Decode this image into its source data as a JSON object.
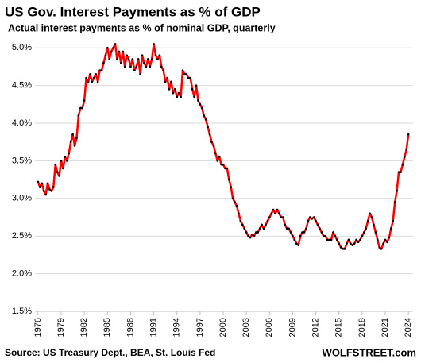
{
  "chart_data": {
    "type": "line",
    "title": "US Gov. Interest Payments as % of GDP",
    "subtitle": "Actual interest payments as % of nominal GDP, quarterly",
    "source": "Source: US Treasury Dept., BEA, St. Louis Fed",
    "credit": "WOLFSTREET.com",
    "color": "#ff0000",
    "marker_color": "#000000",
    "grid": true,
    "xlim": [
      1975.6,
      2024.6
    ],
    "xticks": [
      1976,
      1979,
      1982,
      1985,
      1988,
      1991,
      1994,
      1997,
      2000,
      2003,
      2006,
      2009,
      2012,
      2015,
      2018,
      2021,
      2024
    ],
    "ylim": [
      1.5,
      5.15
    ],
    "yticks": [
      {
        "value": 1.5,
        "label": "1.5%"
      },
      {
        "value": 2.0,
        "label": "2.0%"
      },
      {
        "value": 2.5,
        "label": "2.5%"
      },
      {
        "value": 3.0,
        "label": "3.0%"
      },
      {
        "value": 3.5,
        "label": "3.5%"
      },
      {
        "value": 4.0,
        "label": "4.0%"
      },
      {
        "value": 4.5,
        "label": "4.5%"
      },
      {
        "value": 5.0,
        "label": "5.0%"
      }
    ],
    "x": [
      1976,
      1976.25,
      1976.5,
      1976.75,
      1977,
      1977.25,
      1977.5,
      1977.75,
      1978,
      1978.25,
      1978.5,
      1978.75,
      1979,
      1979.25,
      1979.5,
      1979.75,
      1980,
      1980.25,
      1980.5,
      1980.75,
      1981,
      1981.25,
      1981.5,
      1981.75,
      1982,
      1982.25,
      1982.5,
      1982.75,
      1983,
      1983.25,
      1983.5,
      1983.75,
      1984,
      1984.25,
      1984.5,
      1984.75,
      1985,
      1985.25,
      1985.5,
      1985.75,
      1986,
      1986.25,
      1986.5,
      1986.75,
      1987,
      1987.25,
      1987.5,
      1987.75,
      1988,
      1988.25,
      1988.5,
      1988.75,
      1989,
      1989.25,
      1989.5,
      1989.75,
      1990,
      1990.25,
      1990.5,
      1990.75,
      1991,
      1991.25,
      1991.5,
      1991.75,
      1992,
      1992.25,
      1992.5,
      1992.75,
      1993,
      1993.25,
      1993.5,
      1993.75,
      1994,
      1994.25,
      1994.5,
      1994.75,
      1995,
      1995.25,
      1995.5,
      1995.75,
      1996,
      1996.25,
      1996.5,
      1996.75,
      1997,
      1997.25,
      1997.5,
      1997.75,
      1998,
      1998.25,
      1998.5,
      1998.75,
      1999,
      1999.25,
      1999.5,
      1999.75,
      2000,
      2000.25,
      2000.5,
      2000.75,
      2001,
      2001.25,
      2001.5,
      2001.75,
      2002,
      2002.25,
      2002.5,
      2002.75,
      2003,
      2003.25,
      2003.5,
      2003.75,
      2004,
      2004.25,
      2004.5,
      2004.75,
      2005,
      2005.25,
      2005.5,
      2005.75,
      2006,
      2006.25,
      2006.5,
      2006.75,
      2007,
      2007.25,
      2007.5,
      2007.75,
      2008,
      2008.25,
      2008.5,
      2008.75,
      2009,
      2009.25,
      2009.5,
      2009.75,
      2010,
      2010.25,
      2010.5,
      2010.75,
      2011,
      2011.25,
      2011.5,
      2011.75,
      2012,
      2012.25,
      2012.5,
      2012.75,
      2013,
      2013.25,
      2013.5,
      2013.75,
      2014,
      2014.25,
      2014.5,
      2014.75,
      2015,
      2015.25,
      2015.5,
      2015.75,
      2016,
      2016.25,
      2016.5,
      2016.75,
      2017,
      2017.25,
      2017.5,
      2017.75,
      2018,
      2018.25,
      2018.5,
      2018.75,
      2019,
      2019.25,
      2019.5,
      2019.75,
      2020,
      2020.25,
      2020.5,
      2020.75,
      2021,
      2021.25,
      2021.5,
      2021.75,
      2022,
      2022.25,
      2022.5,
      2022.75,
      2023,
      2023.25,
      2023.5,
      2023.75,
      2024
    ],
    "values": [
      3.22,
      3.15,
      3.2,
      3.1,
      3.05,
      3.2,
      3.12,
      3.1,
      3.15,
      3.45,
      3.35,
      3.3,
      3.5,
      3.4,
      3.55,
      3.5,
      3.6,
      3.75,
      3.85,
      3.7,
      3.8,
      4.1,
      4.2,
      4.2,
      4.3,
      4.6,
      4.55,
      4.65,
      4.55,
      4.6,
      4.65,
      4.55,
      4.7,
      4.7,
      4.8,
      4.9,
      5.0,
      4.85,
      4.95,
      5.0,
      5.05,
      4.85,
      4.95,
      4.8,
      4.95,
      4.75,
      4.9,
      4.85,
      4.75,
      4.85,
      4.7,
      4.75,
      4.85,
      4.65,
      4.9,
      4.8,
      4.75,
      4.85,
      4.75,
      4.85,
      5.05,
      4.9,
      4.85,
      4.9,
      4.75,
      4.7,
      4.55,
      4.6,
      4.45,
      4.55,
      4.4,
      4.45,
      4.35,
      4.4,
      4.35,
      4.7,
      4.65,
      4.65,
      4.6,
      4.6,
      4.45,
      4.35,
      4.5,
      4.3,
      4.25,
      4.2,
      4.1,
      4.05,
      3.95,
      3.85,
      3.75,
      3.7,
      3.6,
      3.5,
      3.55,
      3.45,
      3.45,
      3.4,
      3.4,
      3.25,
      3.15,
      3.0,
      2.95,
      2.9,
      2.8,
      2.7,
      2.65,
      2.6,
      2.55,
      2.5,
      2.48,
      2.52,
      2.5,
      2.55,
      2.55,
      2.6,
      2.65,
      2.6,
      2.65,
      2.7,
      2.75,
      2.8,
      2.85,
      2.8,
      2.85,
      2.8,
      2.75,
      2.75,
      2.65,
      2.6,
      2.6,
      2.55,
      2.5,
      2.45,
      2.4,
      2.38,
      2.5,
      2.55,
      2.55,
      2.6,
      2.7,
      2.75,
      2.73,
      2.75,
      2.7,
      2.65,
      2.6,
      2.55,
      2.5,
      2.5,
      2.45,
      2.45,
      2.45,
      2.55,
      2.5,
      2.45,
      2.4,
      2.35,
      2.33,
      2.33,
      2.4,
      2.45,
      2.4,
      2.38,
      2.4,
      2.45,
      2.42,
      2.45,
      2.5,
      2.55,
      2.6,
      2.7,
      2.8,
      2.75,
      2.65,
      2.55,
      2.45,
      2.35,
      2.33,
      2.4,
      2.45,
      2.42,
      2.48,
      2.6,
      2.7,
      2.95,
      3.1,
      3.35,
      3.35,
      3.45,
      3.55,
      3.65,
      3.85
    ]
  }
}
